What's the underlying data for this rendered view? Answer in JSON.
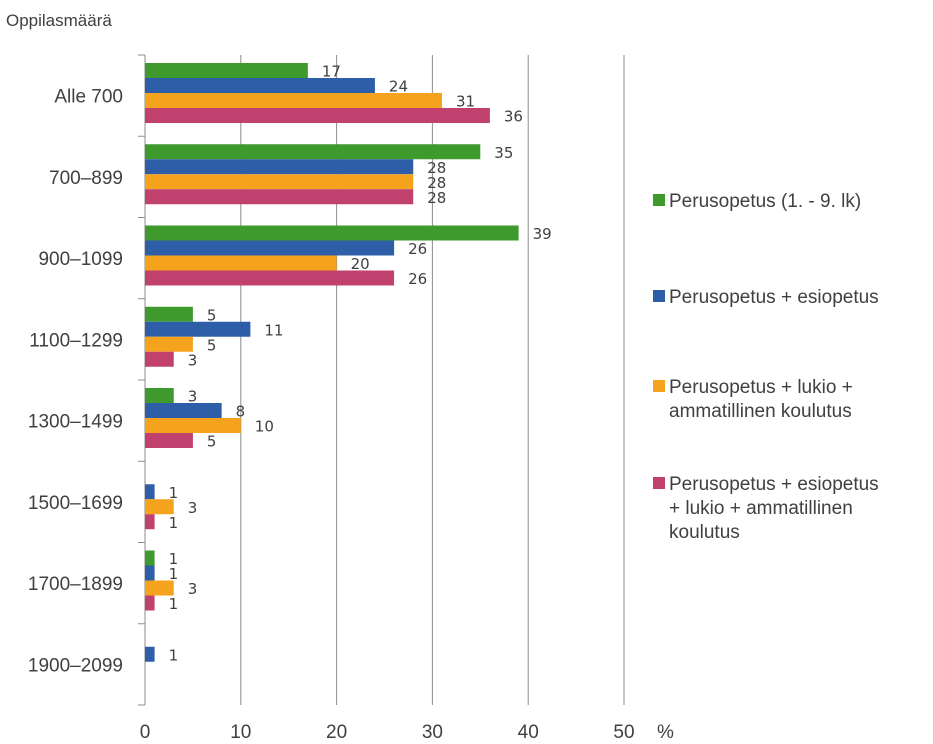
{
  "chart_data": {
    "type": "bar",
    "orientation": "horizontal",
    "title": "",
    "ylabel": "Oppilasmäärä",
    "xlabel": "%",
    "xlim": [
      0,
      50
    ],
    "xticks": [
      "0",
      "10",
      "20",
      "30",
      "40",
      "50"
    ],
    "grid": "vertical",
    "legend_position": "right",
    "categories": [
      "Alle 700",
      "700–899",
      "900–1099",
      "1100–1299",
      "1300–1499",
      "1500–1699",
      "1700–1899",
      "1900–2099"
    ],
    "series": [
      {
        "name": "Perusopetus (1. - 9. lk)",
        "color": "#3f9a2d",
        "values": [
          17,
          35,
          39,
          5,
          3,
          null,
          1,
          null
        ]
      },
      {
        "name": "Perusopetus + esiopetus",
        "color": "#2f5ea8",
        "values": [
          24,
          28,
          26,
          11,
          8,
          1,
          1,
          1
        ]
      },
      {
        "name": "Perusopetus + lukio + ammatillinen koulutus",
        "color": "#f5a21d",
        "values": [
          31,
          28,
          20,
          5,
          10,
          3,
          3,
          null
        ]
      },
      {
        "name": "Perusopetus + esiopetus + lukio + ammatillinen koulutus",
        "color": "#c0406e",
        "values": [
          36,
          28,
          26,
          3,
          5,
          1,
          1,
          null
        ]
      }
    ]
  },
  "legend": [
    {
      "lines": [
        "Perusopetus (1. - 9. lk)"
      ]
    },
    {
      "lines": [
        "Perusopetus + esiopetus"
      ]
    },
    {
      "lines": [
        "Perusopetus + lukio +",
        "ammatillinen koulutus"
      ]
    },
    {
      "lines": [
        "Perusopetus + esiopetus",
        "+ lukio + ammatillinen",
        "koulutus"
      ]
    }
  ]
}
